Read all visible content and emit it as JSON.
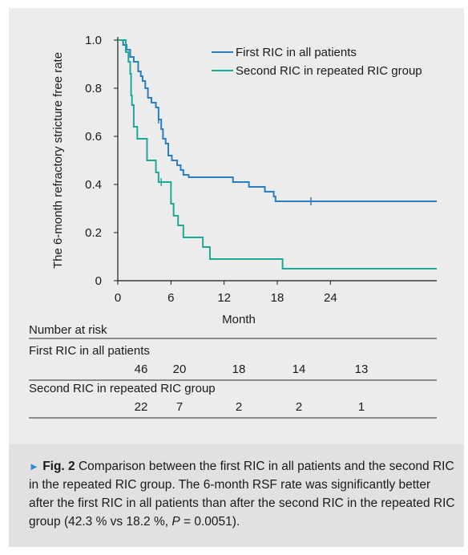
{
  "chart_data": {
    "type": "line",
    "step": true,
    "ylabel": "The 6-month refractory stricture free rate",
    "xlabel": "Month",
    "xlim": [
      0,
      36
    ],
    "ylim": [
      0,
      1.0
    ],
    "x_ticks": [
      0,
      6,
      12,
      18,
      24
    ],
    "y_ticks": [
      {
        "value": 0,
        "label": "0"
      },
      {
        "value": 0.2,
        "label": "0.2"
      },
      {
        "value": 0.4,
        "label": "0.4"
      },
      {
        "value": 0.6,
        "label": "0.6"
      },
      {
        "value": 0.8,
        "label": "0.8"
      },
      {
        "value": 1.0,
        "label": "1.0"
      }
    ],
    "legend_position": "top-right",
    "series": [
      {
        "name": "First RIC in all patients",
        "color": "#2a7ec4",
        "points": [
          [
            0,
            1.0
          ],
          [
            0.6,
            0.98
          ],
          [
            1.0,
            0.96
          ],
          [
            1.4,
            0.93
          ],
          [
            1.8,
            0.91
          ],
          [
            2.3,
            0.87
          ],
          [
            2.6,
            0.85
          ],
          [
            2.8,
            0.83
          ],
          [
            3.1,
            0.8
          ],
          [
            3.4,
            0.76
          ],
          [
            3.8,
            0.74
          ],
          [
            4.3,
            0.72
          ],
          [
            4.6,
            0.67
          ],
          [
            4.9,
            0.63
          ],
          [
            5.1,
            0.59
          ],
          [
            5.4,
            0.57
          ],
          [
            5.7,
            0.52
          ],
          [
            6.1,
            0.5
          ],
          [
            6.7,
            0.48
          ],
          [
            7.1,
            0.46
          ],
          [
            7.4,
            0.44
          ],
          [
            8.0,
            0.43
          ],
          [
            13.0,
            0.41
          ],
          [
            14.8,
            0.39
          ],
          [
            16.6,
            0.37
          ],
          [
            17.6,
            0.35
          ],
          [
            17.8,
            0.33
          ],
          [
            36,
            0.33
          ]
        ],
        "censored": [
          [
            4.6,
            0.67
          ],
          [
            21.8,
            0.33
          ]
        ]
      },
      {
        "name": "Second RIC in repeated RIC group",
        "color": "#20a896",
        "points": [
          [
            0,
            1.0
          ],
          [
            0.9,
            0.95
          ],
          [
            1.2,
            0.91
          ],
          [
            1.4,
            0.86
          ],
          [
            1.5,
            0.77
          ],
          [
            1.6,
            0.73
          ],
          [
            1.8,
            0.64
          ],
          [
            2.2,
            0.59
          ],
          [
            3.3,
            0.5
          ],
          [
            4.3,
            0.45
          ],
          [
            4.6,
            0.41
          ],
          [
            6.0,
            0.32
          ],
          [
            6.3,
            0.27
          ],
          [
            6.8,
            0.23
          ],
          [
            7.4,
            0.18
          ],
          [
            9.6,
            0.14
          ],
          [
            10.4,
            0.09
          ],
          [
            18.6,
            0.05
          ],
          [
            36,
            0.05
          ]
        ],
        "censored": [
          [
            4.9,
            0.41
          ]
        ]
      }
    ],
    "number_at_risk": {
      "title": "Number at risk",
      "groups": [
        {
          "label": "First RIC in all patients",
          "counts": [
            "46",
            "20",
            "18",
            "14",
            "13"
          ]
        },
        {
          "label": "Second RIC in repeated RIC group",
          "counts": [
            "22",
            "7",
            "2",
            "2",
            "1"
          ]
        }
      ]
    }
  },
  "caption": {
    "arrow": "►",
    "fig_label": "Fig. 2",
    "text_a": " Comparison between the first RIC in all patients and the second RIC in the repeated RIC group. The 6-month RSF rate was significantly better after the first RIC in all patients than after the second RIC in the repeated RIC group (42.3 % vs 18.2 %, ",
    "p_symbol": "P",
    "text_b": " = 0.0051)."
  }
}
